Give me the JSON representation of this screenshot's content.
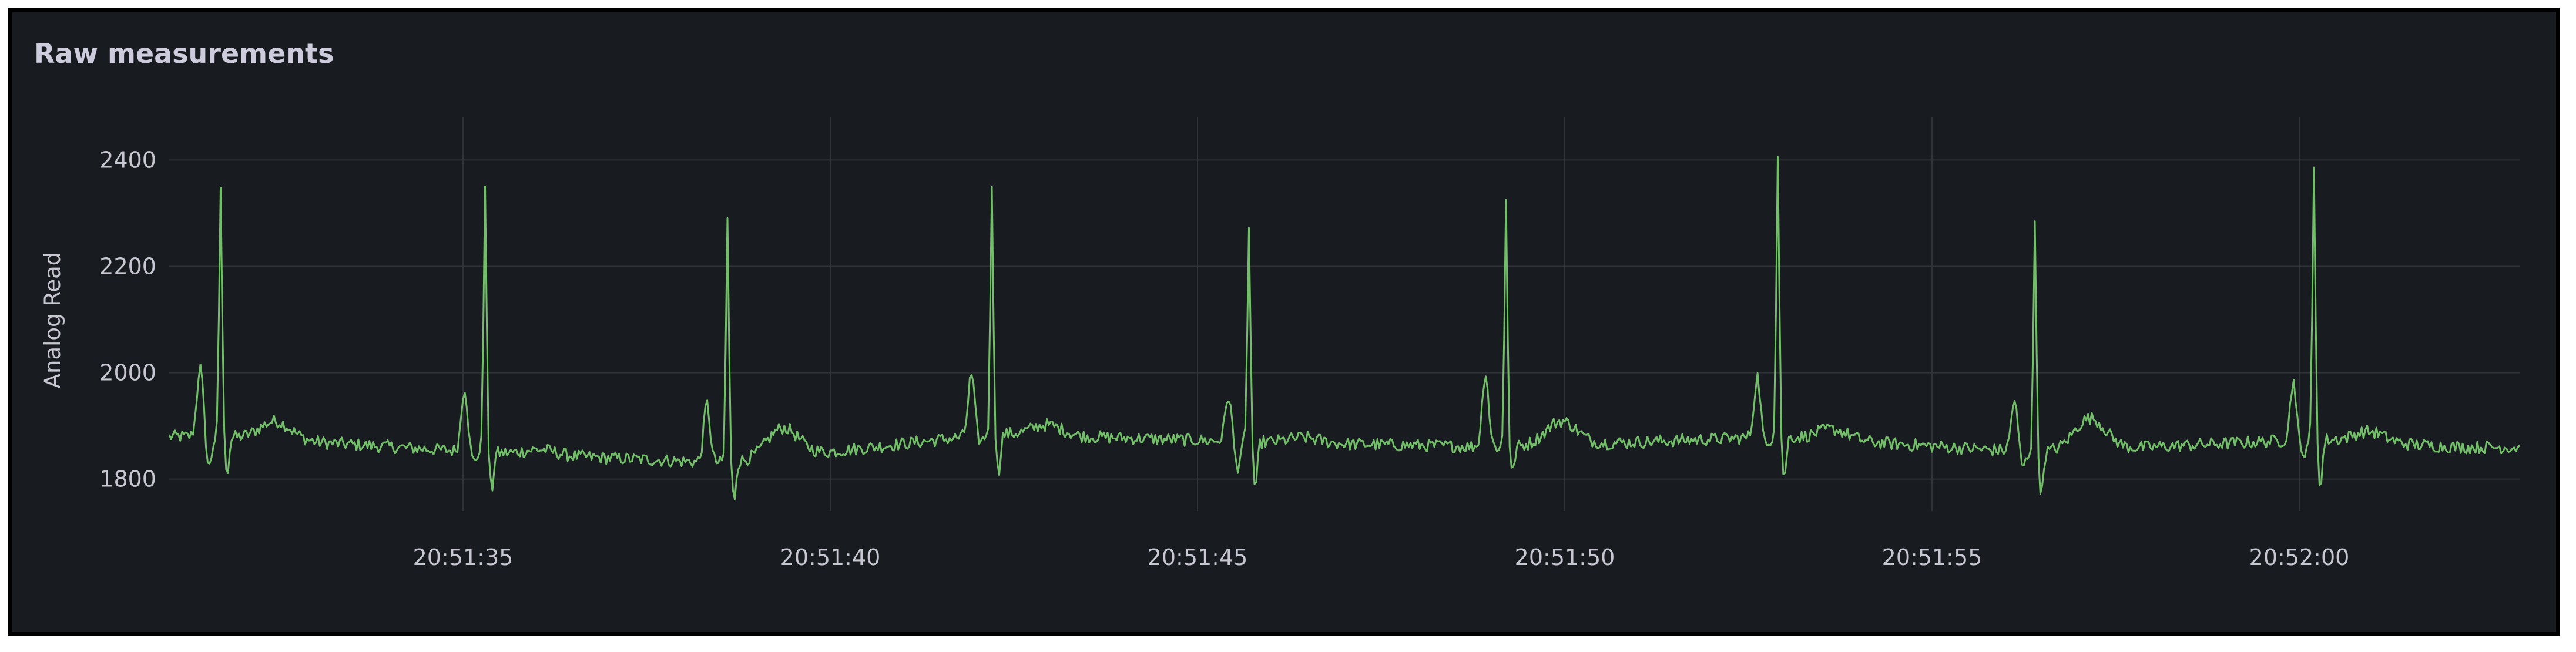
{
  "panel": {
    "title": "Raw measurements"
  },
  "chart_data": {
    "type": "line",
    "title": "Raw measurements",
    "xlabel": "",
    "ylabel": "Analog Read",
    "xlim": [
      "20:51:31",
      "20:52:03"
    ],
    "ylim": [
      1740,
      2480
    ],
    "x_ticks": [
      "20:51:35",
      "20:51:40",
      "20:51:45",
      "20:51:50",
      "20:51:55",
      "20:52:00"
    ],
    "y_ticks": [
      1800,
      2000,
      2200,
      2400
    ],
    "grid": true,
    "legend": "none",
    "colors": {
      "series": "#73bf69",
      "grid": "#2f3237",
      "background": "#181b1f"
    },
    "series": [
      {
        "beats": [
          {
            "r_time": "20:51:31.7",
            "r_peak": 2350,
            "p_wave": 2010,
            "trough": 1820,
            "s_wave": 1815,
            "baseline": 1880,
            "t_wave": 1915
          },
          {
            "r_time": "20:51:35.3",
            "r_peak": 2360,
            "p_wave": 1970,
            "trough": 1830,
            "s_wave": 1780,
            "baseline": 1850,
            "t_wave": 1860
          },
          {
            "r_time": "20:51:38.6",
            "r_peak": 2290,
            "p_wave": 1940,
            "trough": 1830,
            "s_wave": 1760,
            "baseline": 1830,
            "t_wave": 1885
          },
          {
            "r_time": "20:51:42.2",
            "r_peak": 2355,
            "p_wave": 2000,
            "trough": 1870,
            "s_wave": 1810,
            "baseline": 1885,
            "t_wave": 1905
          },
          {
            "r_time": "20:51:45.7",
            "r_peak": 2280,
            "p_wave": 1955,
            "trough": 1820,
            "s_wave": 1775,
            "baseline": 1870,
            "t_wave": 1880
          },
          {
            "r_time": "20:51:49.2",
            "r_peak": 2330,
            "p_wave": 2000,
            "trough": 1860,
            "s_wave": 1810,
            "baseline": 1860,
            "t_wave": 1905
          },
          {
            "r_time": "20:51:52.9",
            "r_peak": 2415,
            "p_wave": 1995,
            "trough": 1860,
            "s_wave": 1800,
            "baseline": 1880,
            "t_wave": 1900
          },
          {
            "r_time": "20:51:56.4",
            "r_peak": 2275,
            "p_wave": 1945,
            "trough": 1820,
            "s_wave": 1770,
            "baseline": 1850,
            "t_wave": 1910
          },
          {
            "r_time": "20:52:00.2",
            "r_peak": 2380,
            "p_wave": 1985,
            "trough": 1840,
            "s_wave": 1785,
            "baseline": 1875,
            "t_wave": 1895
          }
        ],
        "end_value": 1860
      }
    ]
  }
}
